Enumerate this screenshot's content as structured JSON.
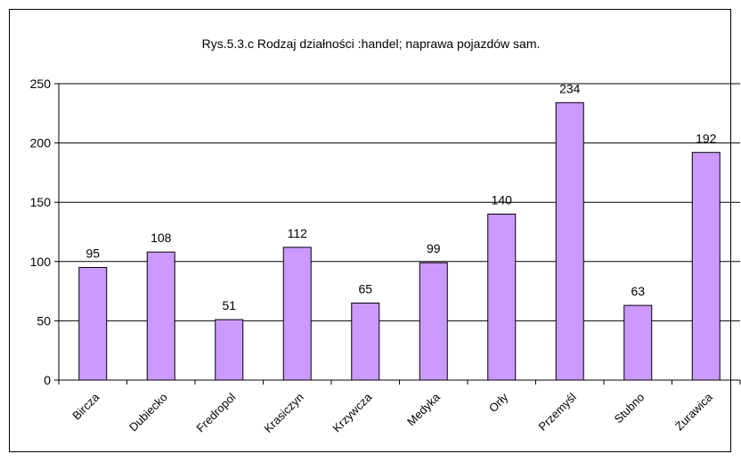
{
  "chart_data": {
    "type": "bar",
    "title": "Rys.5.3.c Rodzaj działności :handel; naprawa pojazdów sam.",
    "xlabel": "",
    "ylabel": "",
    "categories": [
      "Bircza",
      "Dubiecko",
      "Fredropol",
      "Krasiczyn",
      "Krzywcza",
      "Medyka",
      "Orły",
      "Przemyśl",
      "Stubno",
      "Żurawica"
    ],
    "values": [
      95,
      108,
      51,
      112,
      65,
      99,
      140,
      234,
      63,
      192
    ],
    "data_labels": [
      "95",
      "108",
      "51",
      "112",
      "65",
      "99",
      "140",
      "234",
      "63",
      "192"
    ],
    "ylim": [
      0,
      250
    ],
    "yticks": [
      "0",
      "50",
      "100",
      "150",
      "200",
      "250"
    ],
    "grid": true,
    "legend": "none",
    "colors": {
      "bar_fill": "#cc99ff",
      "bar_stroke": "#000000",
      "grid": "#000000"
    }
  }
}
